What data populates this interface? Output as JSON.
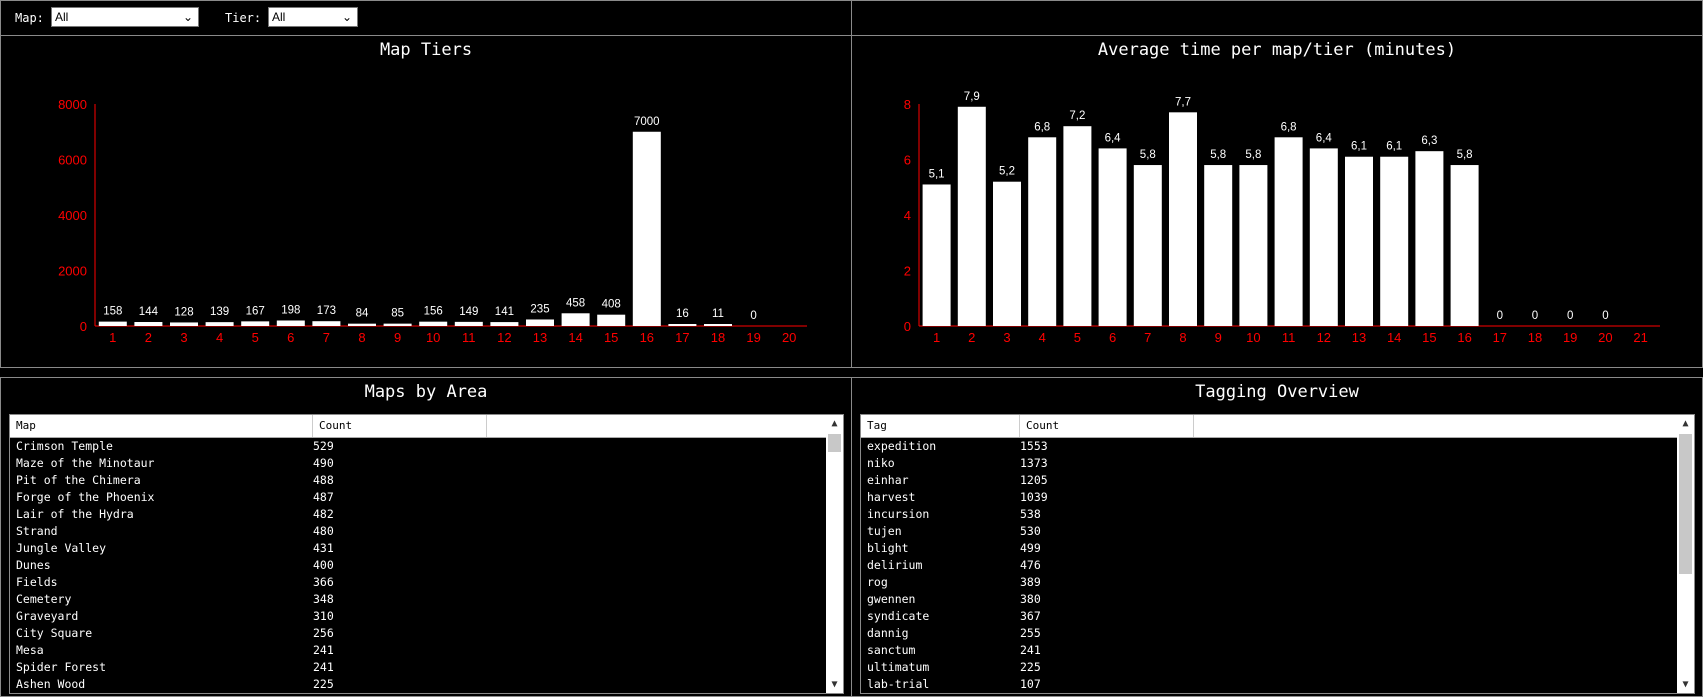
{
  "filters": {
    "map_label": "Map:",
    "map_value": "All",
    "tier_label": "Tier:",
    "tier_value": "All"
  },
  "panels": {
    "tiers_title": "Map Tiers",
    "avg_title": "Average time per map/tier (minutes)",
    "maps_title": "Maps by Area",
    "tags_title": "Tagging Overview"
  },
  "colors": {
    "axis": "#ff0000",
    "bar": "#ffffff",
    "background": "#000000"
  },
  "chart_data": [
    {
      "type": "bar",
      "title": "Map Tiers",
      "categories": [
        "1",
        "2",
        "3",
        "4",
        "5",
        "6",
        "7",
        "8",
        "9",
        "10",
        "11",
        "12",
        "13",
        "14",
        "15",
        "16",
        "17",
        "18",
        "19",
        "20"
      ],
      "values": [
        158,
        144,
        128,
        139,
        167,
        198,
        173,
        84,
        85,
        156,
        149,
        141,
        235,
        458,
        408,
        7000,
        16,
        11,
        0,
        null
      ],
      "data_labels": [
        "158",
        "144",
        "128",
        "139",
        "167",
        "198",
        "173",
        "84",
        "85",
        "156",
        "149",
        "141",
        "235",
        "458",
        "408",
        "7000",
        "16",
        "11",
        "0",
        ""
      ],
      "yticks": [
        "0",
        "2000",
        "4000",
        "6000",
        "8000"
      ],
      "ylim": [
        0,
        8000
      ]
    },
    {
      "type": "bar",
      "title": "Average time per map/tier (minutes)",
      "categories": [
        "1",
        "2",
        "3",
        "4",
        "5",
        "6",
        "7",
        "8",
        "9",
        "10",
        "11",
        "12",
        "13",
        "14",
        "15",
        "16",
        "17",
        "18",
        "19",
        "20",
        "21"
      ],
      "values": [
        5.1,
        7.9,
        5.2,
        6.8,
        7.2,
        6.4,
        5.8,
        7.7,
        5.8,
        5.8,
        6.8,
        6.4,
        6.1,
        6.1,
        6.3,
        5.8,
        0,
        0,
        0,
        0,
        null
      ],
      "data_labels": [
        "5,1",
        "7,9",
        "5,2",
        "6,8",
        "7,2",
        "6,4",
        "5,8",
        "7,7",
        "5,8",
        "5,8",
        "6,8",
        "6,4",
        "6,1",
        "6,1",
        "6,3",
        "5,8",
        "0",
        "0",
        "0",
        "0",
        ""
      ],
      "yticks": [
        "0",
        "2",
        "4",
        "6",
        "8"
      ],
      "ylim": [
        0,
        8
      ]
    }
  ],
  "maps_table": {
    "columns": [
      "Map",
      "Count"
    ],
    "rows": [
      [
        "Crimson Temple",
        "529"
      ],
      [
        "Maze of the Minotaur",
        "490"
      ],
      [
        "Pit of the Chimera",
        "488"
      ],
      [
        "Forge of the Phoenix",
        "487"
      ],
      [
        "Lair of the Hydra",
        "482"
      ],
      [
        "Strand",
        "480"
      ],
      [
        "Jungle Valley",
        "431"
      ],
      [
        "Dunes",
        "400"
      ],
      [
        "Fields",
        "366"
      ],
      [
        "Cemetery",
        "348"
      ],
      [
        "Graveyard",
        "310"
      ],
      [
        "City Square",
        "256"
      ],
      [
        "Mesa",
        "241"
      ],
      [
        "Spider Forest",
        "241"
      ],
      [
        "Ashen Wood",
        "225"
      ]
    ]
  },
  "tags_table": {
    "columns": [
      "Tag",
      "Count"
    ],
    "rows": [
      [
        "expedition",
        "1553"
      ],
      [
        "niko",
        "1373"
      ],
      [
        "einhar",
        "1205"
      ],
      [
        "harvest",
        "1039"
      ],
      [
        "incursion",
        "538"
      ],
      [
        "tujen",
        "530"
      ],
      [
        "blight",
        "499"
      ],
      [
        "delirium",
        "476"
      ],
      [
        "rog",
        "389"
      ],
      [
        "gwennen",
        "380"
      ],
      [
        "syndicate",
        "367"
      ],
      [
        "dannig",
        "255"
      ],
      [
        "sanctum",
        "241"
      ],
      [
        "ultimatum",
        "225"
      ],
      [
        "lab-trial",
        "107"
      ]
    ]
  },
  "icons": {
    "dropdown": "chevron-down-icon",
    "scroll_up": "scroll-up-arrow-icon",
    "scroll_down": "scroll-down-arrow-icon"
  }
}
